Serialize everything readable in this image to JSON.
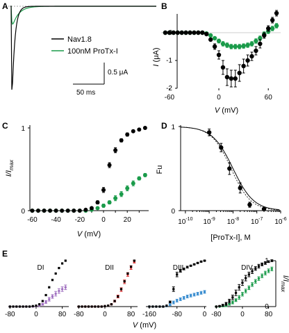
{
  "colors": {
    "control": "#000000",
    "protx": "#1a9b4a",
    "dii_red": "#d62728",
    "diii_blue": "#3b8ed0",
    "di_purple": "#a070c0",
    "div_green": "#1a9b4a"
  },
  "chart_data": [
    {
      "panel": "A",
      "type": "line",
      "series": [
        {
          "name": "Nav1.8"
        },
        {
          "name": "100nM ProTx-I"
        }
      ],
      "scalebar": {
        "y_label": "0.5 μA",
        "x_label": "50 ms"
      }
    },
    {
      "panel": "B",
      "type": "scatter",
      "xlabel_var": "V",
      "xlabel_unit": " (mV)",
      "ylabel_var": "I",
      "ylabel_unit": " (μA)",
      "xlim": [
        -70,
        75
      ],
      "ylim": [
        -2,
        0.8
      ],
      "xticks": [
        -60,
        0,
        60
      ],
      "yticks": [
        -2,
        -1,
        0
      ],
      "x": [
        -65,
        -60,
        -55,
        -50,
        -45,
        -40,
        -35,
        -30,
        -25,
        -20,
        -15,
        -10,
        -5,
        0,
        5,
        10,
        15,
        20,
        25,
        30,
        35,
        40,
        45,
        50,
        55,
        60,
        65,
        70
      ],
      "series": [
        {
          "values": [
            0,
            0,
            0,
            0,
            0,
            0,
            0,
            0,
            0,
            0,
            -0.05,
            -0.25,
            -0.5,
            -0.8,
            -1.25,
            -1.6,
            -1.65,
            -1.65,
            -1.45,
            -1.2,
            -1.0,
            -0.85,
            -0.65,
            -0.4,
            -0.1,
            0.15,
            0.45,
            0.7
          ],
          "err": [
            0,
            0,
            0,
            0,
            0,
            0,
            0,
            0,
            0,
            0,
            0.02,
            0.05,
            0.1,
            0.15,
            0.25,
            0.3,
            0.3,
            0.3,
            0.3,
            0.25,
            0.2,
            0.15,
            0.15,
            0.15,
            0.1,
            0.1,
            0.1,
            0.1
          ]
        },
        {
          "values": [
            0,
            0,
            0,
            0,
            0,
            0,
            0,
            0,
            0,
            0,
            -0.03,
            -0.1,
            -0.2,
            -0.3,
            -0.4,
            -0.45,
            -0.5,
            -0.5,
            -0.5,
            -0.48,
            -0.45,
            -0.4,
            -0.3,
            -0.2,
            -0.05,
            0.05,
            0.15,
            0.25
          ],
          "err": [
            0,
            0,
            0,
            0,
            0,
            0,
            0,
            0,
            0,
            0,
            0.01,
            0.03,
            0.05,
            0.07,
            0.08,
            0.08,
            0.08,
            0.08,
            0.08,
            0.08,
            0.08,
            0.08,
            0.08,
            0.08,
            0.08,
            0.08,
            0.08,
            0.08
          ]
        }
      ]
    },
    {
      "panel": "C",
      "type": "scatter",
      "xlabel_var": "V",
      "xlabel_unit": " (mV)",
      "ylabel": "I/I",
      "ylabel_sub": "max",
      "xlim": [
        -62,
        38
      ],
      "ylim": [
        0,
        1
      ],
      "xticks": [
        -60,
        -40,
        -20,
        0,
        20
      ],
      "xticks2": [
        -60,
        -50,
        -40,
        -30,
        -20,
        -10,
        0,
        10,
        20,
        30
      ],
      "yticks": [
        0,
        1
      ],
      "x": [
        -60,
        -55,
        -50,
        -45,
        -40,
        -35,
        -30,
        -25,
        -20,
        -15,
        -10,
        -5,
        0,
        5,
        10,
        15,
        20,
        25,
        30,
        35
      ],
      "series": [
        {
          "values": [
            0,
            0,
            0,
            0,
            0,
            0,
            0,
            0,
            0,
            0.01,
            0.03,
            0.1,
            0.25,
            0.55,
            0.73,
            0.85,
            0.92,
            0.96,
            0.98,
            1.0
          ],
          "err": [
            0,
            0,
            0,
            0,
            0,
            0,
            0,
            0,
            0,
            0.005,
            0.01,
            0.02,
            0.03,
            0.03,
            0.03,
            0.02,
            0.02,
            0.01,
            0.01,
            0.01
          ]
        },
        {
          "values": [
            0,
            0,
            0,
            0,
            0,
            0,
            0,
            0,
            0,
            0,
            0.01,
            0.03,
            0.06,
            0.1,
            0.15,
            0.2,
            0.27,
            0.33,
            0.39,
            0.43
          ],
          "err": [
            0,
            0,
            0,
            0,
            0,
            0,
            0,
            0,
            0,
            0,
            0.005,
            0.01,
            0.02,
            0.02,
            0.03,
            0.03,
            0.03,
            0.03,
            0.02,
            0.02
          ]
        }
      ]
    },
    {
      "panel": "D",
      "type": "scatter",
      "xlabel": "[ProTx-I], M",
      "ylabel": "Fu",
      "xlim_log10": [
        -10.2,
        -6
      ],
      "ylim": [
        0,
        1
      ],
      "xtick_exps": [
        -10,
        -9,
        -8,
        -7,
        -6
      ],
      "yticks": [
        0,
        1
      ],
      "x_log10": [
        -9,
        -8.5,
        -8.15,
        -7.7,
        -7.3,
        -6.7
      ],
      "values": [
        0.93,
        0.75,
        0.5,
        0.27,
        0.07,
        0.02
      ],
      "err": [
        0.04,
        0.05,
        0.07,
        0.06,
        0.03,
        0.01
      ],
      "ic50_log10": -8.0,
      "hill": 1.0
    },
    {
      "panel": "E",
      "type": "scatter",
      "ylabel": "I/I",
      "ylabel_sub": "max",
      "yticks": [
        0,
        1
      ],
      "xlabel_var": "V",
      "xlabel_unit": " (mV)",
      "subpanels": [
        {
          "title": "DI",
          "xlim": [
            -85,
            100
          ],
          "xticks": [
            -80,
            0,
            80
          ],
          "x": [
            -80,
            -70,
            -60,
            -50,
            -40,
            -30,
            -20,
            -10,
            0,
            10,
            20,
            30,
            40,
            50,
            60,
            70,
            80,
            90
          ],
          "series": [
            {
              "values": [
                0,
                0,
                0,
                0,
                0,
                0,
                0,
                0.01,
                0.02,
                0.05,
                0.12,
                0.25,
                0.42,
                0.58,
                0.72,
                0.84,
                0.94,
                1.0
              ],
              "err": []
            },
            {
              "values": [
                0,
                0,
                0,
                0,
                0,
                0,
                0,
                0,
                0.01,
                0.02,
                0.05,
                0.1,
                0.16,
                0.22,
                0.28,
                0.34,
                0.38,
                0.42
              ],
              "err": [
                0,
                0,
                0,
                0,
                0,
                0,
                0,
                0,
                0,
                0.01,
                0.02,
                0.03,
                0.04,
                0.04,
                0.05,
                0.05,
                0.05,
                0.05
              ]
            }
          ]
        },
        {
          "title": "DII",
          "xlim": [
            -85,
            100
          ],
          "xticks": [
            -80,
            0,
            80
          ],
          "x": [
            -80,
            -70,
            -60,
            -50,
            -40,
            -30,
            -20,
            -10,
            0,
            10,
            20,
            30,
            40,
            50,
            60,
            70,
            80,
            90
          ],
          "series": [
            {
              "values": [
                0,
                0,
                0,
                0,
                0,
                0,
                0,
                0,
                0.01,
                0.02,
                0.05,
                0.12,
                0.22,
                0.38,
                0.55,
                0.72,
                0.87,
                1.0
              ],
              "err": []
            },
            {
              "values": [
                0,
                0,
                0,
                0,
                0,
                0,
                0,
                0,
                0.01,
                0.02,
                0.05,
                0.12,
                0.22,
                0.37,
                0.54,
                0.7,
                0.85,
                0.98
              ],
              "err": [
                0,
                0,
                0,
                0,
                0,
                0,
                0,
                0,
                0,
                0,
                0.01,
                0.02,
                0.03,
                0.04,
                0.04,
                0.04,
                0.04,
                0.03
              ]
            }
          ]
        },
        {
          "title": "DIII",
          "xlim": [
            -170,
            5
          ],
          "xticks": [
            -160,
            -80,
            0
          ],
          "x": [
            -160,
            -150,
            -140,
            -130,
            -120,
            -110,
            -100,
            -90,
            -80,
            -70,
            -60,
            -50,
            -40,
            -30,
            -20,
            -10,
            0
          ],
          "series": [
            {
              "values": [
                0,
                0,
                0,
                0,
                0,
                0.02,
                0.1,
                0.38,
                0.7,
                0.78,
                0.82,
                0.86,
                0.89,
                0.92,
                0.95,
                0.98,
                1.0
              ],
              "err": [
                0,
                0,
                0,
                0,
                0,
                0,
                0.02,
                0.05,
                0.05,
                0.03,
                0.02,
                0.02,
                0.01,
                0.01,
                0.01,
                0.01,
                0.01
              ]
            },
            {
              "values": [
                0,
                0,
                0,
                0,
                0,
                0.01,
                0.04,
                0.09,
                0.13,
                0.16,
                0.19,
                0.22,
                0.24,
                0.26,
                0.28,
                0.3,
                0.32
              ],
              "err": [
                0,
                0,
                0,
                0,
                0,
                0,
                0.02,
                0.03,
                0.03,
                0.03,
                0.03,
                0.03,
                0.03,
                0.03,
                0.03,
                0.03,
                0.03
              ]
            }
          ]
        },
        {
          "title": "DIV",
          "xlim": [
            -85,
            100
          ],
          "xticks": [
            -80,
            0,
            80
          ],
          "x": [
            -80,
            -70,
            -60,
            -50,
            -40,
            -30,
            -20,
            -10,
            0,
            10,
            20,
            30,
            40,
            50,
            60,
            70,
            80,
            90
          ],
          "series": [
            {
              "values": [
                0,
                0.01,
                0.03,
                0.06,
                0.12,
                0.2,
                0.3,
                0.42,
                0.52,
                0.62,
                0.7,
                0.77,
                0.83,
                0.88,
                0.92,
                0.95,
                0.98,
                1.0
              ],
              "err": [
                0,
                0.01,
                0.02,
                0.03,
                0.04,
                0.05,
                0.06,
                0.06,
                0.06,
                0.06,
                0.05,
                0.05,
                0.04,
                0.04,
                0.03,
                0.03,
                0.02,
                0.02
              ]
            },
            {
              "values": [
                0,
                0,
                0.01,
                0.02,
                0.05,
                0.09,
                0.14,
                0.2,
                0.27,
                0.34,
                0.41,
                0.48,
                0.55,
                0.61,
                0.67,
                0.73,
                0.78,
                0.82
              ],
              "err": [
                0,
                0,
                0.01,
                0.02,
                0.02,
                0.03,
                0.03,
                0.04,
                0.04,
                0.04,
                0.04,
                0.04,
                0.04,
                0.04,
                0.04,
                0.04,
                0.04,
                0.04
              ]
            }
          ]
        }
      ]
    }
  ]
}
